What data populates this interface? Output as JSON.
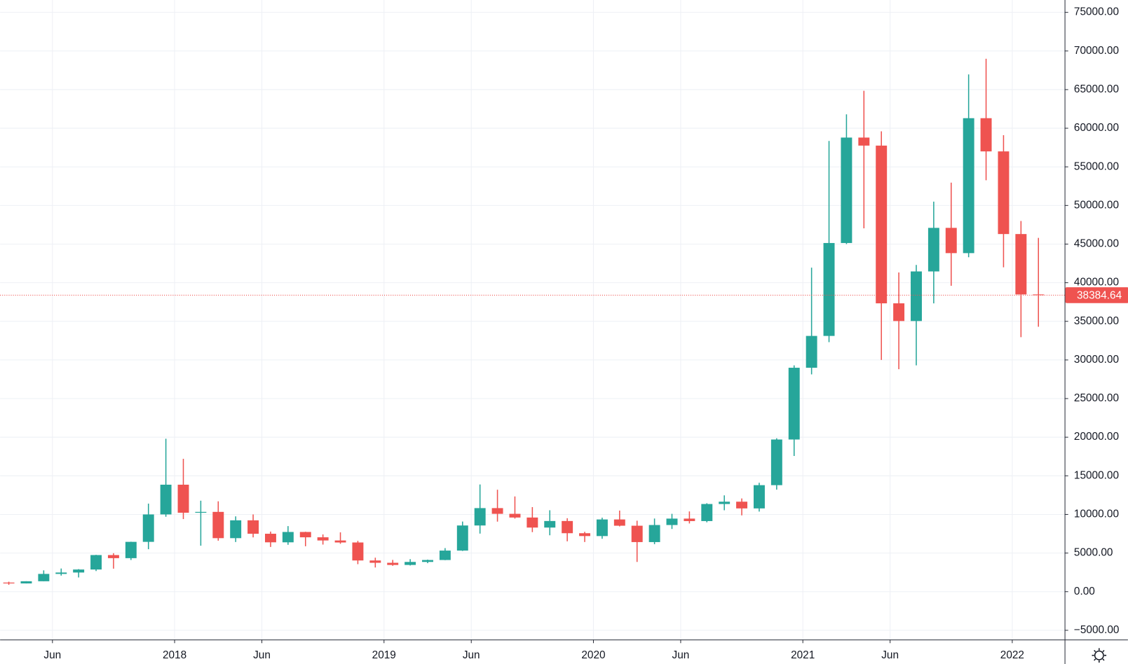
{
  "chart_data": {
    "type": "candlestick",
    "x": [
      "2017-03",
      "2017-04",
      "2017-05",
      "2017-06",
      "2017-07",
      "2017-08",
      "2017-09",
      "2017-10",
      "2017-11",
      "2017-12",
      "2018-01",
      "2018-02",
      "2018-03",
      "2018-04",
      "2018-05",
      "2018-06",
      "2018-07",
      "2018-08",
      "2018-09",
      "2018-10",
      "2018-11",
      "2018-12",
      "2019-01",
      "2019-02",
      "2019-03",
      "2019-04",
      "2019-05",
      "2019-06",
      "2019-07",
      "2019-08",
      "2019-09",
      "2019-10",
      "2019-11",
      "2019-12",
      "2020-01",
      "2020-02",
      "2020-03",
      "2020-04",
      "2020-05",
      "2020-06",
      "2020-07",
      "2020-08",
      "2020-09",
      "2020-10",
      "2020-11",
      "2020-12",
      "2021-01",
      "2021-02",
      "2021-03",
      "2021-04",
      "2021-05",
      "2021-06",
      "2021-07",
      "2021-08",
      "2021-09",
      "2021-10",
      "2021-11",
      "2021-12",
      "2022-01",
      "2022-02"
    ],
    "open": [
      1180,
      1070,
      1350,
      2300,
      2480,
      2870,
      4740,
      4340,
      6450,
      10000,
      13850,
      10220,
      10330,
      6930,
      9240,
      7500,
      6390,
      7730,
      7040,
      6630,
      6370,
      4040,
      3740,
      3460,
      3850,
      4100,
      5320,
      8570,
      10820,
      10080,
      9600,
      8300,
      9150,
      7570,
      7200,
      9350,
      8540,
      6420,
      8630,
      9460,
      9140,
      11350,
      11650,
      10780,
      13790,
      19700,
      28990,
      33110,
      45140,
      58790,
      57750,
      37330,
      35040,
      41460,
      47100,
      43830,
      61300,
      57000,
      46300,
      38480
    ],
    "high": [
      1290,
      1350,
      2760,
      3000,
      2920,
      4770,
      4980,
      6470,
      11400,
      19800,
      17200,
      11780,
      11700,
      9750,
      10000,
      7780,
      8490,
      7760,
      7410,
      7680,
      6580,
      4400,
      4110,
      4210,
      4150,
      5640,
      9080,
      13880,
      13200,
      12330,
      10950,
      10540,
      9510,
      7750,
      9580,
      10500,
      9190,
      9470,
      10080,
      10390,
      11450,
      12470,
      12070,
      14100,
      19860,
      29300,
      41950,
      58350,
      61800,
      64850,
      59600,
      41330,
      42300,
      50500,
      52950,
      66960,
      69000,
      59100,
      47990,
      45800
    ],
    "low": [
      890,
      1060,
      1350,
      2080,
      1840,
      2670,
      2980,
      4100,
      5500,
      9700,
      9400,
      5950,
      6600,
      6430,
      7030,
      5790,
      6070,
      5880,
      6100,
      6200,
      3560,
      3130,
      3350,
      3390,
      3690,
      4080,
      5270,
      7520,
      9070,
      9460,
      7710,
      7300,
      6520,
      6430,
      6850,
      8450,
      3850,
      6150,
      8120,
      8830,
      8980,
      10540,
      9880,
      10370,
      13210,
      17570,
      28130,
      32300,
      45000,
      47040,
      30000,
      28800,
      29300,
      37330,
      39600,
      43300,
      53260,
      42000,
      32950,
      34300
    ],
    "close": [
      1070,
      1350,
      2300,
      2480,
      2870,
      4740,
      4340,
      6450,
      10000,
      13850,
      10220,
      10330,
      6930,
      9240,
      7500,
      6390,
      7730,
      7040,
      6630,
      6370,
      4040,
      3740,
      3460,
      3850,
      4100,
      5320,
      8570,
      10820,
      10080,
      9600,
      8300,
      9150,
      7570,
      7200,
      9350,
      8540,
      6420,
      8630,
      9460,
      9140,
      11350,
      11650,
      10780,
      13790,
      19700,
      28990,
      33110,
      45140,
      58790,
      57750,
      37330,
      35040,
      41460,
      47100,
      43830,
      61300,
      57000,
      46300,
      38480,
      38384.64
    ],
    "up_color": "#26a69a",
    "down_color": "#ef5350",
    "last_price": 38384.64,
    "last_price_color": "#ef5350",
    "xlim": [
      "2017-03",
      "2022-04"
    ],
    "xticks": [
      {
        "value": "2017-06",
        "label": "Jun"
      },
      {
        "value": "2018-01",
        "label": "2018"
      },
      {
        "value": "2018-06",
        "label": "Jun"
      },
      {
        "value": "2019-01",
        "label": "2019"
      },
      {
        "value": "2019-06",
        "label": "Jun"
      },
      {
        "value": "2020-01",
        "label": "2020"
      },
      {
        "value": "2020-06",
        "label": "Jun"
      },
      {
        "value": "2021-01",
        "label": "2021"
      },
      {
        "value": "2021-06",
        "label": "Jun"
      },
      {
        "value": "2022-01",
        "label": "2022"
      }
    ],
    "ylim": [
      -6200,
      76600
    ],
    "yticks": [
      {
        "value": -5000,
        "label": "−5000.00"
      },
      {
        "value": 0,
        "label": "0.00"
      },
      {
        "value": 5000,
        "label": "5000.00"
      },
      {
        "value": 10000,
        "label": "10000.00"
      },
      {
        "value": 15000,
        "label": "15000.00"
      },
      {
        "value": 20000,
        "label": "20000.00"
      },
      {
        "value": 25000,
        "label": "25000.00"
      },
      {
        "value": 30000,
        "label": "30000.00"
      },
      {
        "value": 35000,
        "label": "35000.00"
      },
      {
        "value": 40000,
        "label": "40000.00"
      },
      {
        "value": 45000,
        "label": "45000.00"
      },
      {
        "value": 50000,
        "label": "50000.00"
      },
      {
        "value": 55000,
        "label": "55000.00"
      },
      {
        "value": 60000,
        "label": "60000.00"
      },
      {
        "value": 65000,
        "label": "65000.00"
      },
      {
        "value": 70000,
        "label": "70000.00"
      },
      {
        "value": 75000,
        "label": "75000.00"
      }
    ],
    "grid": true
  }
}
